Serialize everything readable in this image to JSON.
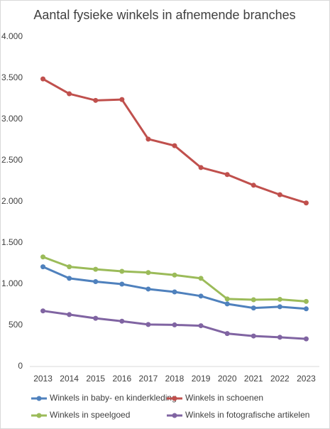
{
  "chart_data": {
    "type": "line",
    "title": "Aantal fysieke winkels in afnemende branches",
    "categories": [
      "2013",
      "2014",
      "2015",
      "2016",
      "2017",
      "2018",
      "2019",
      "2020",
      "2021",
      "2022",
      "2023"
    ],
    "series": [
      {
        "name": "Winkels in baby- en kinderkleding",
        "color": "#4f81bd",
        "values": [
          1210,
          1070,
          1030,
          1000,
          940,
          905,
          855,
          760,
          710,
          725,
          700
        ]
      },
      {
        "name": "Winkels in schoenen",
        "color": "#c0504d",
        "values": [
          3490,
          3310,
          3230,
          3240,
          2760,
          2680,
          2415,
          2330,
          2200,
          2085,
          1985
        ]
      },
      {
        "name": "Winkels in speelgoed",
        "color": "#9bbb59",
        "values": [
          1330,
          1210,
          1180,
          1155,
          1140,
          1110,
          1070,
          820,
          810,
          815,
          790
        ]
      },
      {
        "name": "Winkels in fotografische artikelen",
        "color": "#8064a2",
        "values": [
          675,
          630,
          585,
          550,
          510,
          505,
          495,
          400,
          370,
          355,
          335
        ]
      }
    ],
    "ylim": [
      0,
      4000
    ],
    "yticks": [
      0,
      500,
      {
        "value": 1000,
        "label": "1.000"
      },
      {
        "value": 1500,
        "label": "1.500"
      },
      {
        "value": 2000,
        "label": "2.000"
      },
      {
        "value": 2500,
        "label": "2.500"
      },
      {
        "value": 3000,
        "label": "3.000"
      },
      {
        "value": 3500,
        "label": "3.500"
      },
      {
        "value": 4000,
        "label": "4.000"
      }
    ],
    "grid": false
  }
}
